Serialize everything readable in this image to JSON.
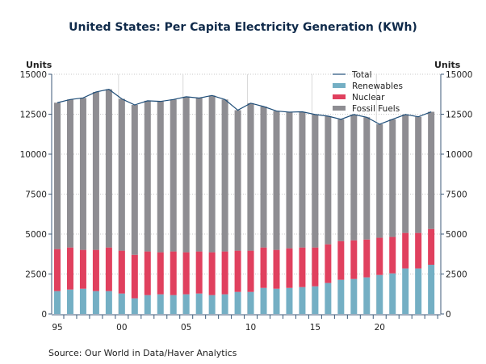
{
  "chart_data": {
    "type": "bar",
    "stacked": true,
    "title": "United States: Per Capita Electricity Generation (KWh)",
    "ylabel_left": "Units",
    "ylabel_right": "Units",
    "ylim": [
      0,
      15000
    ],
    "yticks": [
      0,
      2500,
      5000,
      7500,
      10000,
      12500,
      15000
    ],
    "x": [
      1995,
      1996,
      1997,
      1998,
      1999,
      2000,
      2001,
      2002,
      2003,
      2004,
      2005,
      2006,
      2007,
      2008,
      2009,
      2010,
      2011,
      2012,
      2013,
      2014,
      2015,
      2016,
      2017,
      2018,
      2019,
      2020,
      2021,
      2022,
      2023,
      2024
    ],
    "xtick_labels": [
      {
        "year": 1995,
        "label": "95"
      },
      {
        "year": 2000,
        "label": "00"
      },
      {
        "year": 2005,
        "label": "05"
      },
      {
        "year": 2010,
        "label": "10"
      },
      {
        "year": 2015,
        "label": "15"
      },
      {
        "year": 2020,
        "label": "20"
      }
    ],
    "legend_position": "top-right",
    "series": [
      {
        "name": "Renewables",
        "color": "#74afc4",
        "values": [
          1430,
          1530,
          1580,
          1430,
          1430,
          1280,
          980,
          1180,
          1230,
          1180,
          1230,
          1280,
          1180,
          1230,
          1380,
          1380,
          1630,
          1580,
          1630,
          1680,
          1730,
          1940,
          2140,
          2190,
          2290,
          2440,
          2540,
          2850,
          2850,
          3080
        ]
      },
      {
        "name": "Nuclear",
        "color": "#e0405e",
        "values": [
          2630,
          2630,
          2430,
          2580,
          2730,
          2680,
          2720,
          2730,
          2630,
          2730,
          2630,
          2630,
          2680,
          2680,
          2580,
          2580,
          2530,
          2430,
          2480,
          2480,
          2430,
          2420,
          2420,
          2420,
          2370,
          2330,
          2280,
          2220,
          2220,
          2240
        ]
      },
      {
        "name": "Fossil Fuels",
        "color": "#8e8d92",
        "values": [
          9160,
          9260,
          9510,
          9880,
          9900,
          9500,
          9380,
          9430,
          9440,
          9510,
          9730,
          9600,
          9810,
          9510,
          8790,
          9230,
          8820,
          8690,
          8520,
          8490,
          8320,
          8020,
          7620,
          7870,
          7650,
          7100,
          7360,
          7410,
          7270,
          7330
        ]
      }
    ],
    "line": {
      "name": "Total",
      "color": "#1f4e79",
      "values": [
        13220,
        13420,
        13520,
        13890,
        14060,
        13460,
        13080,
        13340,
        13300,
        13420,
        13590,
        13510,
        13670,
        13420,
        12750,
        13190,
        12980,
        12700,
        12630,
        12650,
        12480,
        12380,
        12180,
        12480,
        12310,
        11870,
        12180,
        12480,
        12340,
        12650
      ]
    },
    "source": "Source:  Our World in Data/Haver Analytics"
  }
}
